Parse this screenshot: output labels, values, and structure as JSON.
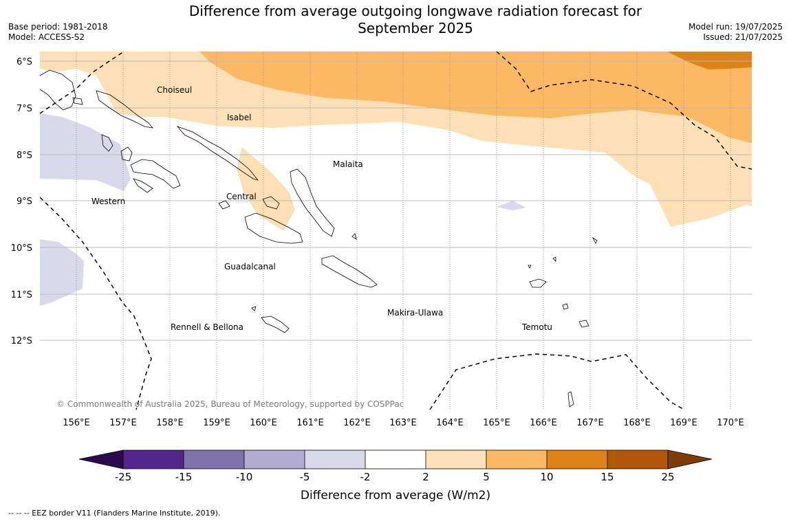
{
  "title_line1": "Difference from average outgoing longwave radiation forecast for",
  "title_line2": "September 2025",
  "base_period": "Base period: 1981-2018",
  "model": "Model: ACCESS-S2",
  "model_run": "Model run: 19/07/2025",
  "issued": "Issued: 21/07/2025",
  "copyright": "© Commonwealth of Australia 2025, Bureau of Meteorology, supported by COSPPac",
  "footnote": "--  --  -- EEZ border V11 (Flanders Marine Institute, 2019).",
  "map": {
    "lat_labels": [
      "6°S",
      "7°S",
      "8°S",
      "9°S",
      "10°S",
      "11°S",
      "12°S"
    ],
    "lon_labels": [
      "156°E",
      "157°E",
      "158°E",
      "159°E",
      "160°E",
      "161°E",
      "162°E",
      "163°E",
      "164°E",
      "165°E",
      "166°E",
      "167°E",
      "168°E",
      "169°E",
      "170°E"
    ],
    "province_labels": [
      "Choiseul",
      "Isabel",
      "Malaita",
      "Central",
      "Western",
      "Guadalcanal",
      "Makira-Ulawa",
      "Rennell & Bellona",
      "Temotu"
    ]
  },
  "colorbar": {
    "title": "Difference from average (W/m2)",
    "tick_labels": [
      "-25",
      "-15",
      "-10",
      "-5",
      "-2",
      "2",
      "5",
      "10",
      "15",
      "25"
    ],
    "colors": {
      "below_min": "#2d0a4e",
      "-25_-15": "#54278f",
      "-15_-10": "#8073ac",
      "-10_-5": "#b2abd2",
      "-5_-2": "#d8daeb",
      "-2_2": "#ffffff",
      "2_5": "#fee0b6",
      "5_10": "#fdb863",
      "10_15": "#e08214",
      "15_25": "#b35806",
      "above_max": "#7f3b08"
    }
  }
}
